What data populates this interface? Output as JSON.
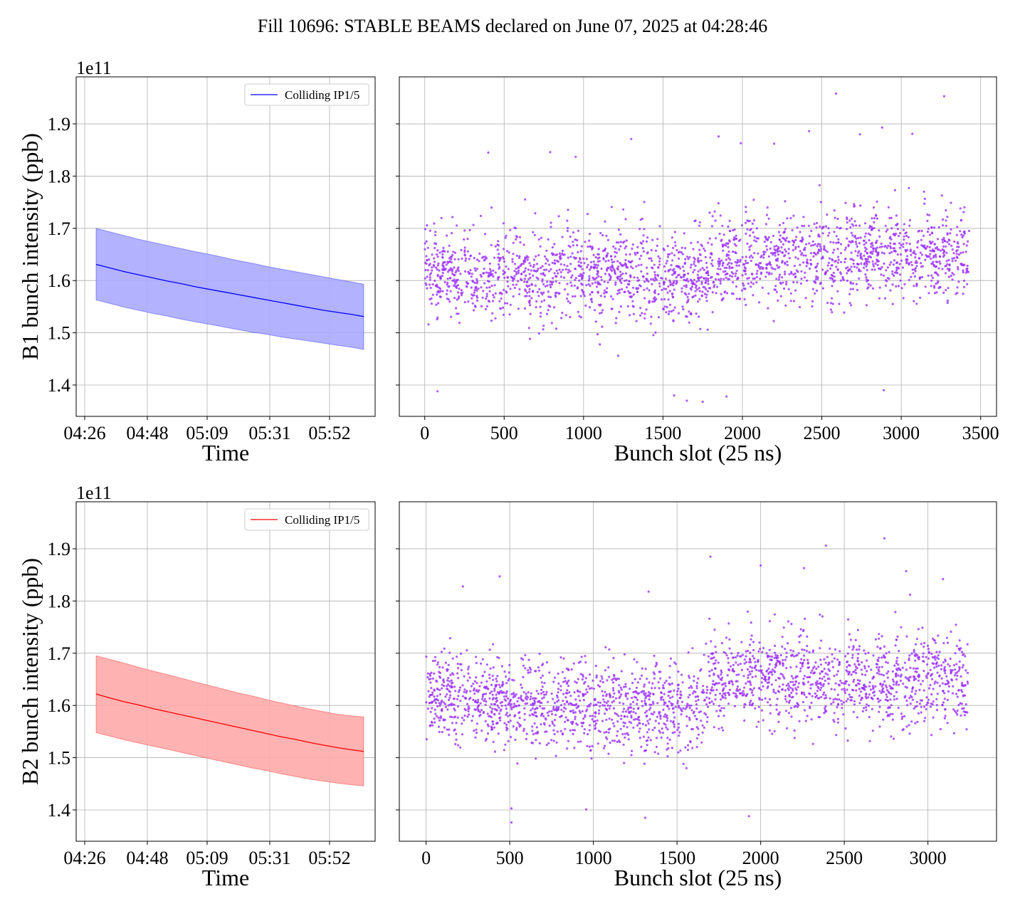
{
  "figure_title": "Fill 10696: STABLE BEAMS declared on June 07, 2025 at 04:28:46",
  "chart_data": [
    {
      "id": "b1_time",
      "type": "line",
      "band": true,
      "color": "#0000ff",
      "band_color": "#aaaaff",
      "xlabel": "Time",
      "ylabel": "B1 bunch intensity (ppb)",
      "offset_text": "1e11",
      "legend": [
        "Colliding IP1/5"
      ],
      "legend_loc": "upper right",
      "grid": true,
      "x_ticks": [
        "04:26",
        "04:48",
        "05:09",
        "05:31",
        "05:52"
      ],
      "x": [
        "04:30",
        "04:35",
        "04:40",
        "04:45",
        "04:50",
        "04:55",
        "05:00",
        "05:05",
        "05:10",
        "05:15",
        "05:20",
        "05:25",
        "05:30",
        "05:35",
        "05:40",
        "05:45",
        "05:50",
        "05:55",
        "06:00",
        "06:04"
      ],
      "mean": [
        1.631,
        1.624,
        1.617,
        1.611,
        1.605,
        1.599,
        1.594,
        1.588,
        1.583,
        1.578,
        1.573,
        1.568,
        1.563,
        1.558,
        1.553,
        1.548,
        1.543,
        1.539,
        1.535,
        1.531
      ],
      "upper": [
        1.7,
        1.693,
        1.686,
        1.679,
        1.673,
        1.667,
        1.661,
        1.655,
        1.65,
        1.644,
        1.638,
        1.633,
        1.627,
        1.622,
        1.617,
        1.612,
        1.607,
        1.602,
        1.597,
        1.593
      ],
      "lower": [
        1.563,
        1.556,
        1.549,
        1.543,
        1.537,
        1.532,
        1.526,
        1.521,
        1.516,
        1.511,
        1.506,
        1.501,
        1.497,
        1.492,
        1.488,
        1.484,
        1.48,
        1.476,
        1.472,
        1.468
      ],
      "ylim": [
        1.34,
        1.99
      ],
      "y_ticks": [
        "1.4",
        "1.5",
        "1.6",
        "1.7",
        "1.8",
        "1.9"
      ]
    },
    {
      "id": "b1_slot",
      "type": "scatter",
      "color": "#9b30ff",
      "xlabel": "Bunch slot (25 ns)",
      "grid": true,
      "xlim": [
        -160,
        3600
      ],
      "ylim": [
        1.34,
        1.99
      ],
      "x_ticks": [
        "0",
        "500",
        "1000",
        "1500",
        "2000",
        "2500",
        "3000",
        "3500"
      ],
      "slot_range": [
        0,
        3430
      ],
      "n_points": 2340,
      "trend": [
        [
          0,
          1.61
        ],
        [
          1000,
          1.61
        ],
        [
          1700,
          1.6
        ],
        [
          1850,
          1.63
        ],
        [
          2600,
          1.65
        ],
        [
          3430,
          1.64
        ]
      ],
      "spread": 0.055,
      "outliers": [
        [
          2590,
          1.958
        ],
        [
          3270,
          1.953
        ],
        [
          2880,
          1.893
        ],
        [
          2420,
          1.886
        ],
        [
          1300,
          1.871
        ],
        [
          1850,
          1.876
        ],
        [
          3070,
          1.881
        ],
        [
          2740,
          1.88
        ],
        [
          400,
          1.845
        ],
        [
          790,
          1.846
        ],
        [
          1990,
          1.863
        ],
        [
          2200,
          1.862
        ],
        [
          950,
          1.837
        ],
        [
          1900,
          1.378
        ],
        [
          80,
          1.388
        ],
        [
          1570,
          1.38
        ],
        [
          2890,
          1.39
        ],
        [
          1750,
          1.368
        ],
        [
          1650,
          1.37
        ]
      ]
    },
    {
      "id": "b2_time",
      "type": "line",
      "band": true,
      "color": "#ff0000",
      "band_color": "#ffaaaa",
      "xlabel": "Time",
      "ylabel": "B2 bunch intensity (ppb)",
      "offset_text": "1e11",
      "legend": [
        "Colliding IP1/5"
      ],
      "legend_loc": "upper right",
      "grid": true,
      "x_ticks": [
        "04:26",
        "04:48",
        "05:09",
        "05:31",
        "05:52"
      ],
      "x": [
        "04:30",
        "04:35",
        "04:40",
        "04:45",
        "04:50",
        "04:55",
        "05:00",
        "05:05",
        "05:10",
        "05:15",
        "05:20",
        "05:25",
        "05:30",
        "05:35",
        "05:40",
        "05:45",
        "05:50",
        "05:55",
        "06:00",
        "06:04"
      ],
      "mean": [
        1.622,
        1.614,
        1.607,
        1.601,
        1.594,
        1.588,
        1.582,
        1.576,
        1.57,
        1.564,
        1.558,
        1.552,
        1.546,
        1.54,
        1.535,
        1.529,
        1.524,
        1.519,
        1.515,
        1.512
      ],
      "upper": [
        1.695,
        1.688,
        1.681,
        1.673,
        1.666,
        1.659,
        1.652,
        1.645,
        1.638,
        1.631,
        1.624,
        1.618,
        1.611,
        1.605,
        1.599,
        1.593,
        1.588,
        1.583,
        1.58,
        1.578
      ],
      "lower": [
        1.548,
        1.541,
        1.534,
        1.528,
        1.522,
        1.516,
        1.51,
        1.504,
        1.498,
        1.492,
        1.486,
        1.48,
        1.475,
        1.469,
        1.464,
        1.459,
        1.455,
        1.451,
        1.448,
        1.446
      ],
      "ylim": [
        1.34,
        1.99
      ],
      "y_ticks": [
        "1.4",
        "1.5",
        "1.6",
        "1.7",
        "1.8",
        "1.9"
      ]
    },
    {
      "id": "b2_slot",
      "type": "scatter",
      "color": "#9b30ff",
      "xlabel": "Bunch slot (25 ns)",
      "grid": true,
      "xlim": [
        -160,
        3410
      ],
      "ylim": [
        1.34,
        1.99
      ],
      "x_ticks": [
        "0",
        "500",
        "1000",
        "1500",
        "2000",
        "2500",
        "3000"
      ],
      "slot_range": [
        0,
        3240
      ],
      "n_points": 2340,
      "trend": [
        [
          0,
          1.61
        ],
        [
          1600,
          1.59
        ],
        [
          1700,
          1.64
        ],
        [
          2000,
          1.66
        ],
        [
          2600,
          1.64
        ],
        [
          3240,
          1.65
        ]
      ],
      "spread": 0.055,
      "outliers": [
        [
          2740,
          1.92
        ],
        [
          2390,
          1.906
        ],
        [
          1700,
          1.885
        ],
        [
          2000,
          1.868
        ],
        [
          2870,
          1.857
        ],
        [
          2260,
          1.863
        ],
        [
          440,
          1.847
        ],
        [
          220,
          1.828
        ],
        [
          1330,
          1.818
        ],
        [
          3090,
          1.842
        ],
        [
          510,
          1.376
        ],
        [
          1310,
          1.385
        ],
        [
          1930,
          1.388
        ],
        [
          510,
          1.403
        ]
      ]
    }
  ]
}
